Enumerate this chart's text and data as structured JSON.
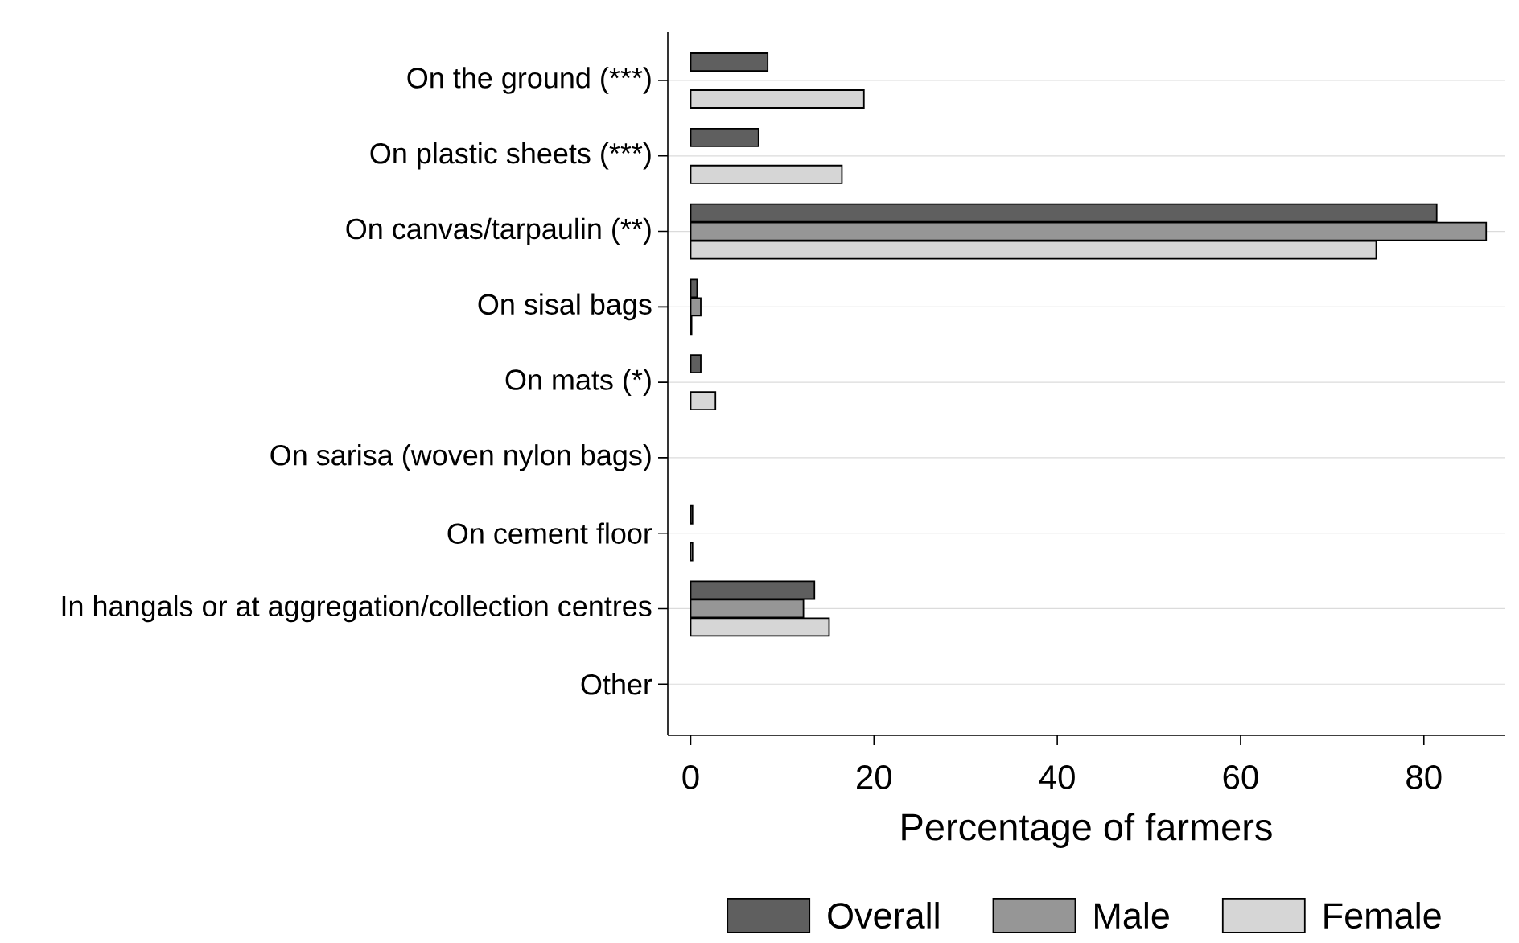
{
  "chart_data": {
    "type": "bar",
    "orientation": "horizontal",
    "xlabel": "Percentage of farmers",
    "categories": [
      "On the ground (***)",
      "On plastic sheets (***)",
      "On canvas/tarpaulin (**)",
      "On sisal bags",
      "On mats (*)",
      "On sarisa (woven nylon bags)",
      "On cement floor",
      "In hangals or at aggregation/collection centres",
      "Other"
    ],
    "series": [
      {
        "name": "Overall",
        "color": "#5f5f5f",
        "values": [
          8.4,
          7.4,
          81.4,
          0.7,
          1.1,
          null,
          0.2,
          13.5,
          null
        ]
      },
      {
        "name": "Male",
        "color": "#969696",
        "values": [
          null,
          null,
          86.8,
          1.1,
          null,
          null,
          null,
          12.3,
          null
        ]
      },
      {
        "name": "Female",
        "color": "#d6d6d6",
        "values": [
          18.9,
          16.5,
          74.8,
          0.1,
          2.7,
          null,
          0.2,
          15.1,
          null
        ]
      }
    ],
    "xlim": [
      -2.5,
      88.8
    ],
    "xticks": [
      0,
      20,
      40,
      60,
      80
    ],
    "grid": "y",
    "legend": "bottom"
  }
}
